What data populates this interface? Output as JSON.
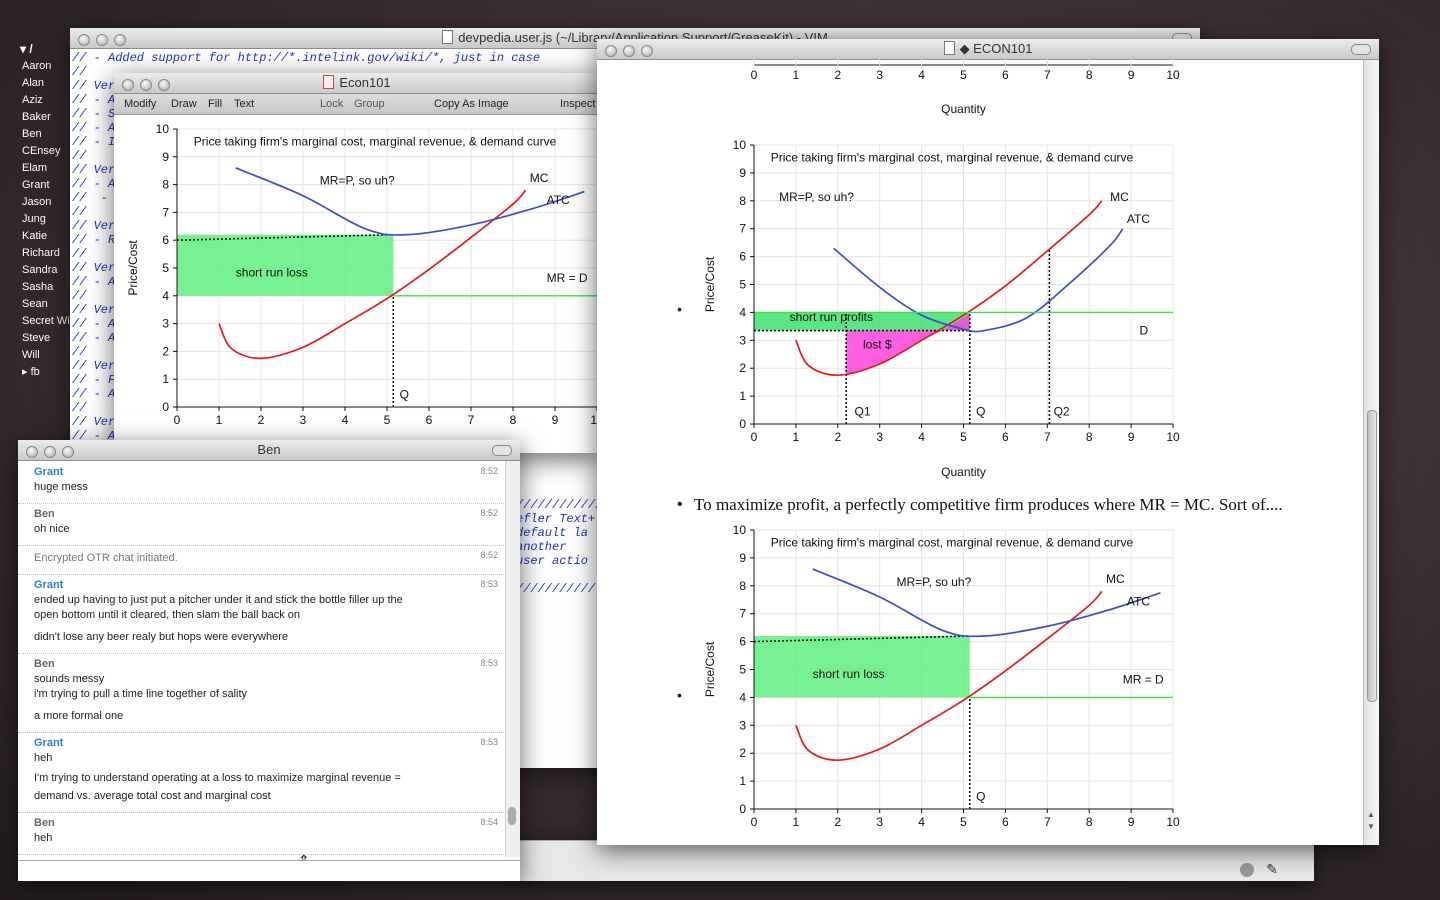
{
  "buddy_list": {
    "header": "/",
    "items": [
      "Aaron",
      "Alan",
      "Aziz",
      "Baker",
      "Ben",
      "CEnsey",
      "Elam",
      "Grant",
      "Jason",
      "Jung",
      "Katie",
      "Richard",
      "Sandra",
      "Sasha",
      "Sean",
      "Secret Will",
      "Steve",
      "Will"
    ],
    "group_fb": "fb"
  },
  "vim": {
    "title": "devpedia.user.js (~/Library/Application Support/GreaseKit) - VIM",
    "top_lines": [
      "// - Added support for http://*.intelink.gov/wiki/*, just in case",
      "//",
      "// Ver",
      "// - A",
      "// - S",
      "// - A",
      "// - I",
      "//",
      "// Ver",
      "// - A",
      "//  -",
      "//",
      "// Ver",
      "// - R",
      "//",
      "// Ver",
      "// - A",
      "//",
      "// Ver",
      "// - A",
      "// - A",
      "//",
      "// Ver",
      "// - F",
      "// - A",
      "//",
      "// Ver",
      "// - A"
    ],
    "bottom_lines": [
      "////////////",
      "efler Text+",
      "default la",
      "another",
      "user actio",
      "",
      "///////////"
    ]
  },
  "econ_small": {
    "title": "Econ101",
    "toolbar": [
      "Modify",
      "Draw",
      "Fill",
      "Text",
      "Lock",
      "Group",
      "Copy As Image",
      "Inspect"
    ]
  },
  "econ_main": {
    "title": "◆ ECON101",
    "bullet_text": "To maximize profit, a perfectly competitive firm produces where MR = MC. Sort of...."
  },
  "chat": {
    "title": "Ben",
    "messages": [
      {
        "sender": "Grant",
        "time": "8:52",
        "lines": [
          "huge mess"
        ]
      },
      {
        "sender": "Ben",
        "time": "8:52",
        "lines": [
          "oh nice"
        ]
      },
      {
        "sender": "",
        "time": "8:52",
        "lines": [
          "Encrypted OTR chat initiated."
        ]
      },
      {
        "sender": "Grant",
        "time": "8:53",
        "lines": [
          "ended up having to just put a pitcher under it and stick the bottle filler up the",
          "open bottom until it cleared, then slam the ball back on",
          "didn't lose any beer realy but hops were everywhere"
        ]
      },
      {
        "sender": "Ben",
        "time": "8:53",
        "lines": [
          "sounds messy",
          "i'm trying to pull a time line together of sality",
          "a more formal one"
        ]
      },
      {
        "sender": "Grant",
        "time": "8:53",
        "lines": [
          "heh",
          "I'm trying to understand operating at a loss to maximize marginal revenue =",
          "demand vs. average total cost and marginal cost"
        ]
      },
      {
        "sender": "Ben",
        "time": "8:54",
        "lines": [
          "heh"
        ]
      }
    ],
    "input_value": ""
  },
  "chart_data": [
    {
      "id": "loss_small",
      "type": "line",
      "title": "Price taking firm's marginal cost, marginal revenue, & demand curve",
      "xlabel": "",
      "ylabel": "Price/Cost",
      "xlim": [
        0,
        10
      ],
      "ylim": [
        0,
        10
      ],
      "x_ticks": [
        "0",
        "1",
        "2",
        "3",
        "4",
        "5",
        "6",
        "7",
        "8",
        "9",
        "10"
      ],
      "y_ticks": [
        "0",
        "1",
        "2",
        "3",
        "4",
        "5",
        "6",
        "7",
        "8",
        "9",
        "10"
      ],
      "annotations": [
        "MR=P, so uh?",
        "MC",
        "ATC",
        "MR = D",
        "short run loss",
        "Q"
      ],
      "series": [
        {
          "name": "MC",
          "color": "#e81818",
          "points": [
            [
              1,
              3
            ],
            [
              1.3,
              2.1
            ],
            [
              2,
              1.75
            ],
            [
              3,
              2.15
            ],
            [
              4,
              3
            ],
            [
              5,
              3.9
            ],
            [
              6,
              4.95
            ],
            [
              7,
              6.1
            ],
            [
              8,
              7.3
            ],
            [
              8.3,
              7.8
            ]
          ]
        },
        {
          "name": "ATC",
          "color": "#3a4fd0",
          "points": [
            [
              1.4,
              8.6
            ],
            [
              3,
              7.6
            ],
            [
              4.5,
              6.4
            ],
            [
              5.5,
              6.2
            ],
            [
              7,
              6.55
            ],
            [
              8.5,
              7.15
            ],
            [
              9.7,
              7.75
            ]
          ]
        },
        {
          "name": "MR = D",
          "color": "#44dd44",
          "points": [
            [
              5.15,
              4
            ],
            [
              10,
              4
            ]
          ]
        }
      ],
      "regions": [
        {
          "label": "short run loss",
          "x": [
            0,
            5.15
          ],
          "y": [
            4,
            6.2
          ],
          "color": "#55ee77"
        }
      ],
      "q_marker": 5.15
    },
    {
      "id": "profit",
      "type": "line",
      "title": "Price taking firm's marginal cost, marginal revenue, & demand curve",
      "xlabel": "Quantity",
      "ylabel": "Price/Cost",
      "xlim": [
        0,
        10
      ],
      "ylim": [
        0,
        10
      ],
      "x_ticks": [
        "0",
        "1",
        "2",
        "3",
        "4",
        "5",
        "6",
        "7",
        "8",
        "9",
        "10"
      ],
      "y_ticks": [
        "0",
        "1",
        "2",
        "3",
        "4",
        "5",
        "6",
        "7",
        "8",
        "9",
        "10"
      ],
      "annotations": [
        "MR=P, so uh?",
        "MC",
        "ATC",
        "D",
        "short run profits",
        "lost $",
        "Q1",
        "Q",
        "Q2"
      ],
      "series": [
        {
          "name": "MC",
          "color": "#e81818",
          "points": [
            [
              1,
              3
            ],
            [
              1.3,
              2.1
            ],
            [
              2,
              1.75
            ],
            [
              3,
              2.15
            ],
            [
              4,
              3
            ],
            [
              5,
              3.9
            ],
            [
              6,
              4.95
            ],
            [
              7,
              6.2
            ],
            [
              8,
              7.5
            ],
            [
              8.3,
              8
            ]
          ]
        },
        {
          "name": "ATC",
          "color": "#3a4fd0",
          "points": [
            [
              1.9,
              6.3
            ],
            [
              3,
              4.9
            ],
            [
              4,
              3.9
            ],
            [
              5,
              3.4
            ],
            [
              5.5,
              3.35
            ],
            [
              6.5,
              3.8
            ],
            [
              7.5,
              5
            ],
            [
              8.5,
              6.4
            ],
            [
              8.8,
              7
            ]
          ]
        },
        {
          "name": "D",
          "color": "#44dd44",
          "points": [
            [
              0,
              4
            ],
            [
              10,
              4
            ]
          ]
        }
      ],
      "regions": [
        {
          "label": "short run profits",
          "x": [
            0,
            5.15
          ],
          "y": [
            3.35,
            4
          ],
          "color": "#33dd66"
        },
        {
          "label": "lost $",
          "x": [
            2.2,
            5.15
          ],
          "y": [
            1.75,
            3.35
          ],
          "color": "#ff44dd"
        }
      ],
      "q_markers": [
        2.2,
        5.15,
        7.05
      ]
    },
    {
      "id": "loss_bottom",
      "type": "line",
      "title": "Price taking firm's marginal cost, marginal revenue, & demand curve",
      "xlabel": "",
      "ylabel": "Price/Cost",
      "xlim": [
        0,
        10
      ],
      "ylim": [
        0,
        10
      ],
      "x_ticks": [
        "0",
        "1",
        "2",
        "3",
        "4",
        "5",
        "6",
        "7",
        "8",
        "9",
        "10"
      ],
      "y_ticks": [
        "0",
        "1",
        "2",
        "3",
        "4",
        "5",
        "6",
        "7",
        "8",
        "9",
        "10"
      ],
      "annotations": [
        "MR=P, so uh?",
        "MC",
        "ATC",
        "MR = D",
        "short run loss",
        "Q"
      ],
      "series": [
        {
          "name": "MC",
          "color": "#e81818",
          "points": [
            [
              1,
              3
            ],
            [
              1.3,
              2.1
            ],
            [
              2,
              1.75
            ],
            [
              3,
              2.15
            ],
            [
              4,
              3
            ],
            [
              5,
              3.9
            ],
            [
              6,
              4.95
            ],
            [
              7,
              6.1
            ],
            [
              8,
              7.3
            ],
            [
              8.3,
              7.8
            ]
          ]
        },
        {
          "name": "ATC",
          "color": "#3a4fd0",
          "points": [
            [
              1.4,
              8.6
            ],
            [
              3,
              7.6
            ],
            [
              4.5,
              6.4
            ],
            [
              5.5,
              6.2
            ],
            [
              7,
              6.55
            ],
            [
              8.5,
              7.15
            ],
            [
              9.7,
              7.75
            ]
          ]
        },
        {
          "name": "MR = D",
          "color": "#44dd44",
          "points": [
            [
              5.15,
              4
            ],
            [
              10,
              4
            ]
          ]
        }
      ],
      "regions": [
        {
          "label": "short run loss",
          "x": [
            0,
            5.15
          ],
          "y": [
            4,
            6.2
          ],
          "color": "#55ee77"
        }
      ],
      "q_marker": 5.15
    }
  ],
  "top_axis": {
    "ticks": [
      "0",
      "1",
      "2",
      "3",
      "4",
      "5",
      "6",
      "7",
      "8",
      "9",
      "10"
    ],
    "xlabel": "Quantity"
  }
}
